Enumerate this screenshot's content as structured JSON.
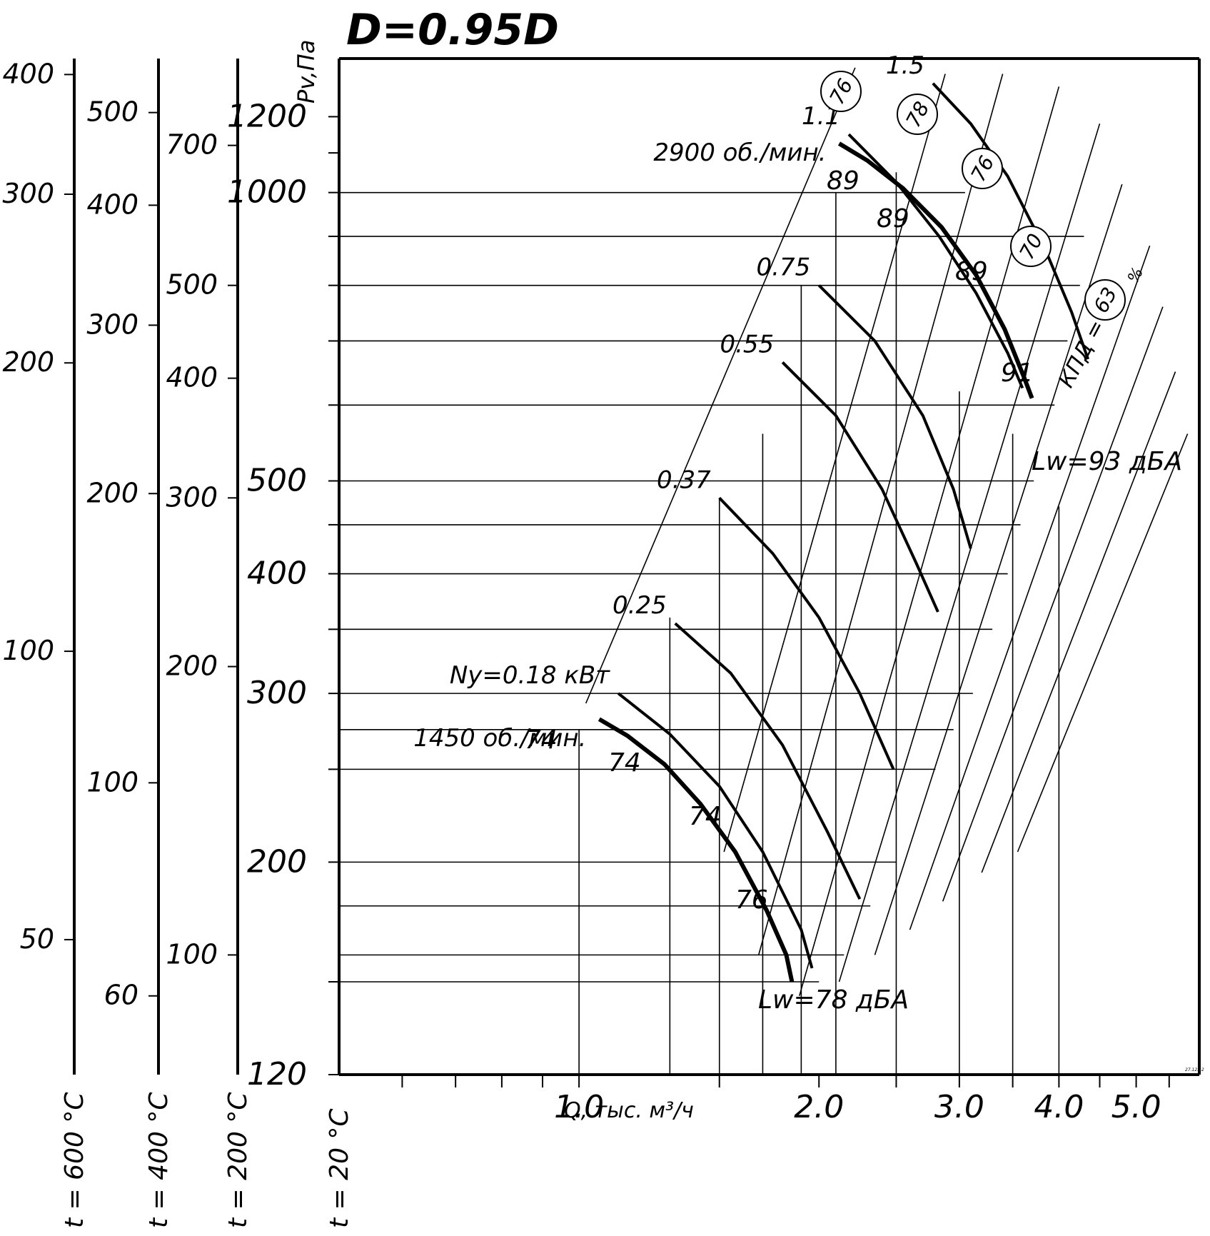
{
  "chart_data": {
    "type": "line",
    "title": "D=0.95D",
    "xlabel": "Q, тыс. м³/ч",
    "ylabel": "Pv,Па",
    "x_scale": "log",
    "y_scale": "log",
    "xlim": [
      0.5,
      6.0
    ],
    "ylim": [
      120,
      1380
    ],
    "x_ticks": [
      {
        "value": 1.0,
        "label": "1.0"
      },
      {
        "value": 2.0,
        "label": "2.0"
      },
      {
        "value": 3.0,
        "label": "3.0"
      },
      {
        "value": 4.0,
        "label": "4.0"
      },
      {
        "value": 5.0,
        "label": "5.0"
      }
    ],
    "x_minor_ticks": [
      0.6,
      0.7,
      0.8,
      0.9,
      1.5,
      2.5,
      3.5,
      4.5,
      5.5
    ],
    "y_ticks": [
      {
        "value": 120,
        "label": "120"
      },
      {
        "value": 200,
        "label": "200"
      },
      {
        "value": 300,
        "label": "300"
      },
      {
        "value": 400,
        "label": "400"
      },
      {
        "value": 500,
        "label": "500"
      },
      {
        "value": 1000,
        "label": "1000"
      },
      {
        "value": 1200,
        "label": "1200"
      }
    ],
    "y_minor_ticks": [
      150,
      250,
      350,
      450,
      600,
      700,
      800,
      900,
      1100
    ],
    "temperature_axes": [
      {
        "label": "t = 600 °C",
        "ticks": [
          {
            "value": 50,
            "pv": 166,
            "label": "50"
          },
          {
            "value": 100,
            "pv": 332,
            "label": "100"
          },
          {
            "value": 200,
            "pv": 664,
            "label": "200"
          },
          {
            "value": 300,
            "pv": 996,
            "label": "300"
          },
          {
            "value": 400,
            "pv": 1328,
            "label": "400"
          }
        ]
      },
      {
        "label": "t = 400 °C",
        "ticks": [
          {
            "value": 60,
            "pv": 145,
            "label": "60"
          },
          {
            "value": 100,
            "pv": 242,
            "label": "100"
          },
          {
            "value": 200,
            "pv": 485,
            "label": "200"
          },
          {
            "value": 300,
            "pv": 727,
            "label": "300"
          },
          {
            "value": 400,
            "pv": 970,
            "label": "400"
          },
          {
            "value": 500,
            "pv": 1212,
            "label": "500"
          }
        ]
      },
      {
        "label": "t = 200 °C",
        "ticks": [
          {
            "value": 100,
            "pv": 160,
            "label": "100"
          },
          {
            "value": 200,
            "pv": 320,
            "label": "200"
          },
          {
            "value": 300,
            "pv": 480,
            "label": "300"
          },
          {
            "value": 400,
            "pv": 640,
            "label": "400"
          },
          {
            "value": 500,
            "pv": 800,
            "label": "500"
          },
          {
            "value": 700,
            "pv": 1120,
            "label": "700"
          }
        ]
      },
      {
        "label": "t = 20 °C"
      }
    ],
    "series": [
      {
        "name": "2900 об./мин.",
        "points": [
          [
            2.12,
            1125
          ],
          [
            2.3,
            1080
          ],
          [
            2.55,
            1010
          ],
          [
            2.85,
            920
          ],
          [
            3.15,
            820
          ],
          [
            3.42,
            720
          ],
          [
            3.62,
            640
          ],
          [
            3.7,
            610
          ]
        ]
      },
      {
        "name": "1450 об./мин.",
        "points": [
          [
            1.06,
            282
          ],
          [
            1.15,
            271
          ],
          [
            1.28,
            253
          ],
          [
            1.42,
            230
          ],
          [
            1.57,
            205
          ],
          [
            1.72,
            178
          ],
          [
            1.82,
            160
          ],
          [
            1.85,
            150
          ]
        ]
      }
    ],
    "efficiency_curves": [
      {
        "label": "76",
        "points": [
          [
            2.18,
            1150
          ],
          [
            2.5,
            1025
          ],
          [
            2.83,
            900
          ],
          [
            3.15,
            785
          ],
          [
            3.45,
            680
          ],
          [
            3.6,
            625
          ]
        ]
      },
      {
        "label": "78",
        "points": [
          [
            2.78,
            1300
          ],
          [
            3.1,
            1180
          ],
          [
            3.45,
            1040
          ],
          [
            3.85,
            870
          ],
          [
            4.15,
            750
          ],
          [
            4.35,
            670
          ]
        ]
      },
      {
        "label": "74",
        "points": [
          [
            1.12,
            300
          ],
          [
            1.3,
            272
          ],
          [
            1.5,
            240
          ],
          [
            1.7,
            205
          ],
          [
            1.9,
            170
          ],
          [
            1.96,
            155
          ]
        ]
      }
    ],
    "power_lines": [
      {
        "label": "Nу=0.18 кВт",
        "points": [
          [
            1.12,
            300
          ],
          [
            1.3,
            272
          ],
          [
            1.5,
            240
          ],
          [
            1.7,
            205
          ],
          [
            1.9,
            170
          ],
          [
            1.96,
            155
          ]
        ]
      },
      {
        "label": "0.25",
        "points": [
          [
            1.32,
            355
          ],
          [
            1.55,
            315
          ],
          [
            1.8,
            265
          ],
          [
            2.05,
            215
          ],
          [
            2.25,
            183
          ]
        ]
      },
      {
        "label": "0.37",
        "points": [
          [
            1.5,
            480
          ],
          [
            1.75,
            420
          ],
          [
            2.0,
            360
          ],
          [
            2.25,
            300
          ],
          [
            2.48,
            250
          ]
        ]
      },
      {
        "label": "0.55",
        "points": [
          [
            1.8,
            665
          ],
          [
            2.1,
            585
          ],
          [
            2.4,
            490
          ],
          [
            2.65,
            410
          ],
          [
            2.82,
            365
          ]
        ]
      },
      {
        "label": "0.75",
        "points": [
          [
            2.0,
            800
          ],
          [
            2.35,
            700
          ],
          [
            2.7,
            585
          ],
          [
            2.95,
            490
          ],
          [
            3.1,
            425
          ]
        ]
      },
      {
        "label": "1.1",
        "points": [
          [
            2.18,
            1150
          ],
          [
            2.5,
            1025
          ],
          [
            2.83,
            900
          ],
          [
            3.15,
            785
          ],
          [
            3.45,
            680
          ],
          [
            3.6,
            625
          ]
        ]
      },
      {
        "label": "1.5",
        "points": [
          [
            2.78,
            1300
          ],
          [
            3.1,
            1180
          ],
          [
            3.45,
            1040
          ],
          [
            3.85,
            870
          ],
          [
            4.15,
            750
          ],
          [
            4.35,
            670
          ]
        ]
      }
    ],
    "annotations": {
      "noise_high": "Lw=93 дБА",
      "noise_low": "Lw=78 дБА",
      "efficiency_prefix": "КПД =",
      "efficiency_unit": "%",
      "efficiency_circles": [
        "76",
        "78",
        "76",
        "70",
        "63"
      ],
      "noise_labels_high": [
        "89",
        "89",
        "89",
        "91"
      ],
      "noise_labels_low": [
        "74",
        "74",
        "74",
        "76"
      ],
      "stamp": "27.12.12"
    }
  }
}
